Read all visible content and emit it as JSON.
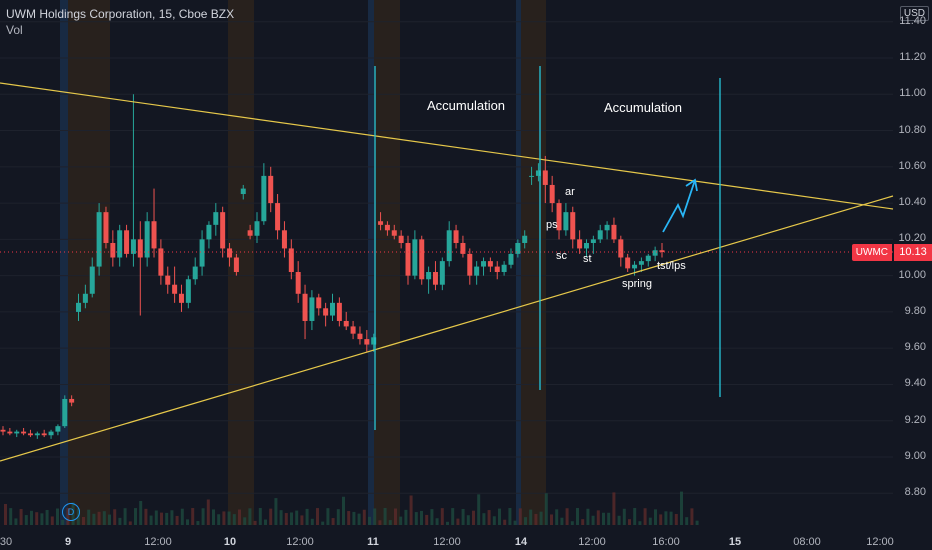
{
  "legend": {
    "title": "UWM Holdings Corporation, 15, Cboe BZX",
    "volume_label": "Vol"
  },
  "currency": "USD",
  "symbol": "UWMC",
  "last_price": "10.13",
  "annotations": {
    "accumulation_1": "Accumulation",
    "accumulation_2": "Accumulation",
    "ar": "ar",
    "ps": "ps",
    "sc": "sc",
    "st": "st",
    "spring": "spring",
    "tst_lps": "tst/lps"
  },
  "dividend_marker": "D",
  "colors": {
    "background": "#131722",
    "up": "#26a69a",
    "down": "#ef5350",
    "trendline": "#e6c84a",
    "marker_line": "#26c6da",
    "price_tag": "#f23645"
  },
  "chart_data": {
    "type": "candlestick",
    "title": "UWM Holdings Corporation, 15, Cboe BZX",
    "ylabel": "USD",
    "ylim": [
      8.7,
      11.45
    ],
    "y_ticks": [
      "11.40",
      "11.20",
      "11.00",
      "10.80",
      "10.60",
      "10.40",
      "10.20",
      "10.00",
      "9.80",
      "9.60",
      "9.40",
      "9.20",
      "9.00",
      "8.80"
    ],
    "x_ticks": [
      "30",
      "9",
      "12:00",
      "10",
      "12:00",
      "11",
      "12:00",
      "14",
      "12:00",
      "16:00",
      "15",
      "08:00",
      "12:00"
    ],
    "last_price": 10.13,
    "candles": [
      [
        9.15,
        9.17,
        9.12,
        9.14
      ],
      [
        9.14,
        9.16,
        9.12,
        9.13
      ],
      [
        9.13,
        9.15,
        9.11,
        9.14
      ],
      [
        9.14,
        9.16,
        9.12,
        9.13
      ],
      [
        9.13,
        9.15,
        9.11,
        9.12
      ],
      [
        9.12,
        9.14,
        9.1,
        9.13
      ],
      [
        9.13,
        9.15,
        9.11,
        9.12
      ],
      [
        9.12,
        9.15,
        9.1,
        9.14
      ],
      [
        9.14,
        9.18,
        9.12,
        9.17
      ],
      [
        9.17,
        9.34,
        9.16,
        9.32
      ],
      [
        9.32,
        9.34,
        9.28,
        9.3
      ],
      [
        9.8,
        9.9,
        9.75,
        9.85
      ],
      [
        9.85,
        9.95,
        9.82,
        9.9
      ],
      [
        9.9,
        10.1,
        9.88,
        10.05
      ],
      [
        10.05,
        10.4,
        10.0,
        10.35
      ],
      [
        10.35,
        10.38,
        10.15,
        10.18
      ],
      [
        10.18,
        10.25,
        10.05,
        10.1
      ],
      [
        10.1,
        10.28,
        10.05,
        10.25
      ],
      [
        10.25,
        10.28,
        10.1,
        10.12
      ],
      [
        10.12,
        11.0,
        10.05,
        10.2
      ],
      [
        10.2,
        10.3,
        9.78,
        10.1
      ],
      [
        10.1,
        10.35,
        10.05,
        10.3
      ],
      [
        10.3,
        10.48,
        10.1,
        10.15
      ],
      [
        10.15,
        10.2,
        9.95,
        10.0
      ],
      [
        10.0,
        10.05,
        9.9,
        9.95
      ],
      [
        9.95,
        10.05,
        9.85,
        9.9
      ],
      [
        9.9,
        9.95,
        9.8,
        9.85
      ],
      [
        9.85,
        10.0,
        9.82,
        9.98
      ],
      [
        9.98,
        10.1,
        9.95,
        10.05
      ],
      [
        10.05,
        10.25,
        10.0,
        10.2
      ],
      [
        10.2,
        10.3,
        10.15,
        10.28
      ],
      [
        10.28,
        10.4,
        10.22,
        10.35
      ],
      [
        10.35,
        10.38,
        10.1,
        10.15
      ],
      [
        10.15,
        10.18,
        10.05,
        10.1
      ],
      [
        10.1,
        10.12,
        10.0,
        10.02
      ],
      [
        10.45,
        10.5,
        10.42,
        10.48
      ],
      [
        10.25,
        10.28,
        10.2,
        10.22
      ],
      [
        10.22,
        10.35,
        10.18,
        10.3
      ],
      [
        10.3,
        10.62,
        10.28,
        10.55
      ],
      [
        10.55,
        10.6,
        10.35,
        10.4
      ],
      [
        10.4,
        10.45,
        10.2,
        10.25
      ],
      [
        10.25,
        10.3,
        10.1,
        10.15
      ],
      [
        10.15,
        10.2,
        9.98,
        10.02
      ],
      [
        10.02,
        10.08,
        9.85,
        9.9
      ],
      [
        9.9,
        9.95,
        9.65,
        9.75
      ],
      [
        9.75,
        9.92,
        9.7,
        9.88
      ],
      [
        9.88,
        9.9,
        9.78,
        9.82
      ],
      [
        9.82,
        9.85,
        9.72,
        9.78
      ],
      [
        9.78,
        9.9,
        9.75,
        9.85
      ],
      [
        9.85,
        9.88,
        9.72,
        9.75
      ],
      [
        9.75,
        9.8,
        9.7,
        9.72
      ],
      [
        9.72,
        9.75,
        9.65,
        9.68
      ],
      [
        9.68,
        9.72,
        9.62,
        9.65
      ],
      [
        9.65,
        9.7,
        9.58,
        9.62
      ],
      [
        9.62,
        9.68,
        9.58,
        9.66
      ],
      [
        10.3,
        10.35,
        10.25,
        10.28
      ],
      [
        10.28,
        10.3,
        10.22,
        10.25
      ],
      [
        10.25,
        10.28,
        10.2,
        10.22
      ],
      [
        10.22,
        10.25,
        10.15,
        10.18
      ],
      [
        10.18,
        10.22,
        9.95,
        10.0
      ],
      [
        10.0,
        10.25,
        9.98,
        10.2
      ],
      [
        10.2,
        10.22,
        9.95,
        9.98
      ],
      [
        9.98,
        10.05,
        9.9,
        10.02
      ],
      [
        10.02,
        10.08,
        9.92,
        9.95
      ],
      [
        9.95,
        10.1,
        9.92,
        10.08
      ],
      [
        10.08,
        10.3,
        10.05,
        10.25
      ],
      [
        10.25,
        10.28,
        10.15,
        10.18
      ],
      [
        10.18,
        10.22,
        10.1,
        10.12
      ],
      [
        10.12,
        10.15,
        9.95,
        10.0
      ],
      [
        10.0,
        10.08,
        9.95,
        10.05
      ],
      [
        10.05,
        10.1,
        10.0,
        10.08
      ],
      [
        10.08,
        10.1,
        10.02,
        10.05
      ],
      [
        10.05,
        10.08,
        9.98,
        10.02
      ],
      [
        10.02,
        10.08,
        10.0,
        10.06
      ],
      [
        10.06,
        10.15,
        10.04,
        10.12
      ],
      [
        10.12,
        10.2,
        10.1,
        10.18
      ],
      [
        10.18,
        10.25,
        10.15,
        10.22
      ],
      [
        10.55,
        10.6,
        10.5,
        10.55
      ],
      [
        10.55,
        10.62,
        10.52,
        10.58
      ],
      [
        10.58,
        10.66,
        10.4,
        10.5
      ],
      [
        10.5,
        10.55,
        10.35,
        10.4
      ],
      [
        10.4,
        10.42,
        10.2,
        10.25
      ],
      [
        10.25,
        10.4,
        10.22,
        10.35
      ],
      [
        10.35,
        10.38,
        10.15,
        10.2
      ],
      [
        10.2,
        10.25,
        10.12,
        10.15
      ],
      [
        10.15,
        10.2,
        10.1,
        10.18
      ],
      [
        10.18,
        10.22,
        10.12,
        10.2
      ],
      [
        10.2,
        10.28,
        10.18,
        10.25
      ],
      [
        10.25,
        10.3,
        10.2,
        10.28
      ],
      [
        10.28,
        10.32,
        10.18,
        10.2
      ],
      [
        10.2,
        10.22,
        10.05,
        10.1
      ],
      [
        10.1,
        10.12,
        10.02,
        10.04
      ],
      [
        10.04,
        10.08,
        10.0,
        10.06
      ],
      [
        10.06,
        10.1,
        10.02,
        10.08
      ],
      [
        10.08,
        10.12,
        10.05,
        10.11
      ],
      [
        10.11,
        10.16,
        10.08,
        10.14
      ],
      [
        10.14,
        10.18,
        10.1,
        10.13
      ]
    ]
  }
}
